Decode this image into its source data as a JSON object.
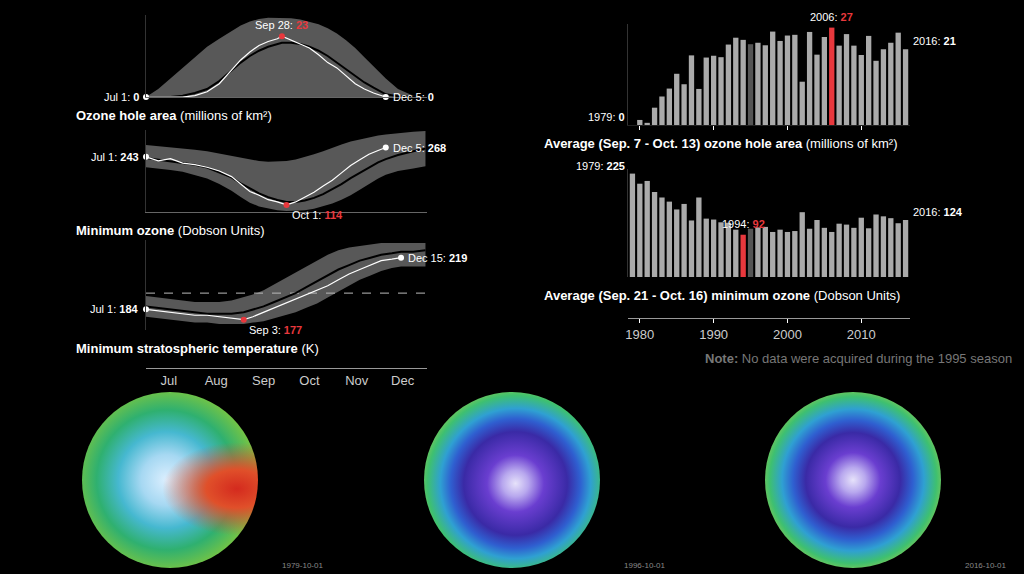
{
  "chart_data": [
    {
      "type": "line",
      "title": "Ozone hole area (millions of km²)",
      "x": [
        0,
        8,
        16,
        24,
        32,
        40,
        48,
        56,
        62,
        68,
        74,
        80,
        86,
        89,
        95,
        101,
        107,
        113,
        119,
        125,
        131,
        137,
        143,
        149,
        157,
        165,
        175,
        183
      ],
      "xlim": [
        0,
        184
      ],
      "ylim": [
        0,
        31
      ],
      "tick_labels": false,
      "series": [
        {
          "color": "#ffffff",
          "values": [
            0,
            0,
            0,
            0,
            0.5,
            2,
            5,
            10,
            14,
            17,
            19.5,
            21,
            22,
            23,
            21.5,
            20,
            18.5,
            16,
            13,
            11,
            8,
            5,
            3,
            1.5,
            0,
            null,
            null,
            null
          ]
        },
        {
          "color": "#000000",
          "values": [
            0,
            0,
            0,
            0.5,
            1.5,
            3,
            6,
            10,
            13,
            15.5,
            17.5,
            19,
            20,
            20.5,
            20.5,
            20,
            19,
            17.5,
            15.5,
            13,
            10.5,
            8,
            5.5,
            3.5,
            1,
            0.3,
            0,
            0
          ]
        }
      ],
      "band_low": [
        0,
        0,
        0,
        0,
        0,
        0,
        0,
        0,
        0,
        0,
        0,
        0,
        0,
        0,
        0,
        0,
        0,
        0,
        0,
        0,
        0,
        0,
        0,
        0,
        0,
        0,
        0,
        0
      ],
      "band_high": [
        0,
        3,
        7,
        11,
        15,
        19,
        22,
        25,
        27,
        28.5,
        29.5,
        30,
        30,
        30,
        29.8,
        29.3,
        28.5,
        27.5,
        26,
        24,
        21.5,
        18.5,
        15,
        11.5,
        7,
        3,
        0.5,
        0
      ],
      "annotations": [
        {
          "x": 0,
          "y": 0,
          "text": "Jul 1:",
          "color": "#ffffff"
        },
        {
          "x": 89,
          "y": 23,
          "text": "Sep 28:",
          "color": "#e8383d"
        },
        {
          "x": 157,
          "y": 0,
          "text": "Dec 5:",
          "color": "#ffffff"
        }
      ]
    },
    {
      "type": "line",
      "title": "Minimum ozone (Dobson Units)",
      "x": [
        0,
        8,
        16,
        24,
        32,
        40,
        48,
        56,
        62,
        68,
        74,
        80,
        86,
        92,
        98,
        104,
        110,
        116,
        122,
        128,
        134,
        140,
        146,
        152,
        157,
        165,
        175,
        183
      ],
      "xlim": [
        0,
        184
      ],
      "ylim": [
        95,
        315
      ],
      "tick_labels": false,
      "series": [
        {
          "color": "#ffffff",
          "values": [
            243,
            232,
            238,
            226,
            222,
            215,
            205,
            190,
            170,
            150,
            140,
            128,
            122,
            114,
            122,
            135,
            148,
            165,
            180,
            200,
            220,
            235,
            250,
            260,
            268,
            null,
            null,
            null
          ]
        },
        {
          "color": "#000000",
          "values": [
            240,
            236,
            232,
            228,
            222,
            214,
            202,
            188,
            172,
            158,
            145,
            135,
            127,
            122,
            122,
            126,
            133,
            143,
            156,
            170,
            186,
            200,
            215,
            228,
            237,
            248,
            258,
            265
          ]
        }
      ],
      "band_low": [
        215,
        212,
        208,
        203,
        195,
        185,
        170,
        152,
        135,
        120,
        110,
        104,
        100,
        98,
        98,
        100,
        104,
        110,
        118,
        128,
        140,
        155,
        170,
        185,
        195,
        205,
        212,
        218
      ],
      "band_high": [
        275,
        272,
        270,
        267,
        262,
        258,
        252,
        245,
        240,
        236,
        232,
        230,
        230,
        232,
        236,
        242,
        250,
        258,
        268,
        276,
        284,
        290,
        295,
        300,
        303,
        307,
        310,
        312
      ],
      "annotations": [
        {
          "x": 0,
          "y": 243,
          "text": "Jul 1:",
          "color": "#ffffff"
        },
        {
          "x": 92,
          "y": 114,
          "text": "Oct 1:",
          "color": "#e8383d"
        },
        {
          "x": 157,
          "y": 268,
          "text": "Dec 5:",
          "color": "#ffffff"
        }
      ]
    },
    {
      "type": "line",
      "title": "Minimum stratospheric temperature (K)",
      "x": [
        0,
        8,
        16,
        24,
        32,
        40,
        48,
        56,
        64,
        70,
        77,
        84,
        91,
        98,
        105,
        112,
        119,
        126,
        133,
        140,
        147,
        154,
        161,
        167,
        175,
        183
      ],
      "xlim": [
        0,
        184
      ],
      "ylim": [
        170,
        231
      ],
      "tick_labels": "x",
      "xticks": [
        {
          "value": 15,
          "label": "Jul"
        },
        {
          "value": 46,
          "label": "Aug"
        },
        {
          "value": 77,
          "label": "Sep"
        },
        {
          "value": 107,
          "label": "Oct"
        },
        {
          "value": 138,
          "label": "Nov"
        },
        {
          "value": 168,
          "label": "Dec"
        }
      ],
      "reference_line": 195,
      "series": [
        {
          "color": "#ffffff",
          "values": [
            184,
            183,
            182,
            181,
            180,
            180,
            179,
            178,
            177,
            179,
            182,
            185,
            188,
            191,
            194,
            197,
            200,
            204,
            208,
            211,
            214,
            217,
            218,
            219,
            null,
            null
          ]
        },
        {
          "color": "#000000",
          "values": [
            186,
            185,
            184,
            183,
            182,
            181,
            181,
            181,
            182,
            184,
            186,
            189,
            192,
            195,
            199,
            203,
            207,
            211,
            214,
            217,
            219,
            221,
            222,
            223,
            223,
            224
          ]
        }
      ],
      "band_low": [
        179,
        178,
        177,
        176,
        175,
        175,
        174,
        174,
        174,
        175,
        176,
        178,
        180,
        182,
        185,
        188,
        192,
        196,
        200,
        204,
        207,
        210,
        212,
        213,
        213,
        213
      ],
      "band_high": [
        193,
        192,
        191,
        190,
        189,
        189,
        189,
        190,
        192,
        194,
        197,
        201,
        205,
        209,
        213,
        217,
        221,
        224,
        226,
        227,
        228,
        229,
        229,
        229,
        229,
        229
      ],
      "annotations": [
        {
          "x": 0,
          "y": 184,
          "text": "Jul 1:",
          "color": "#ffffff"
        },
        {
          "x": 64,
          "y": 177,
          "text": "Sep 3:",
          "color": "#e8383d"
        },
        {
          "x": 167,
          "y": 219,
          "text": "Dec 15:",
          "color": "#ffffff"
        }
      ]
    },
    {
      "type": "bar",
      "title": "Average (Sep. 7 - Oct. 13) ozone hole area (millions of km²)",
      "x": [
        1979,
        1980,
        1981,
        1982,
        1983,
        1984,
        1985,
        1986,
        1987,
        1988,
        1989,
        1990,
        1991,
        1992,
        1993,
        1994,
        1995,
        1996,
        1997,
        1998,
        1999,
        2000,
        2001,
        2002,
        2003,
        2004,
        2005,
        2006,
        2007,
        2008,
        2009,
        2010,
        2011,
        2012,
        2013,
        2014,
        2015,
        2016
      ],
      "values": [
        0,
        1.4,
        0.6,
        4.8,
        7.9,
        10.1,
        14.2,
        11.3,
        19.3,
        10.0,
        18.7,
        19.2,
        18.8,
        22.3,
        24.2,
        23.6,
        22.4,
        22.8,
        22.1,
        25.9,
        23.3,
        24.8,
        25.0,
        12.0,
        25.8,
        19.5,
        24.4,
        27,
        22.0,
        25.2,
        22.0,
        19.4,
        24.7,
        17.8,
        21.0,
        22.8,
        25.6,
        21
      ],
      "colors": [
        "#aaaaaa",
        "#aaaaaa",
        "#aaaaaa",
        "#aaaaaa",
        "#aaaaaa",
        "#aaaaaa",
        "#aaaaaa",
        "#aaaaaa",
        "#aaaaaa",
        "#aaaaaa",
        "#aaaaaa",
        "#aaaaaa",
        "#aaaaaa",
        "#aaaaaa",
        "#aaaaaa",
        "#aaaaaa",
        "#555555",
        "#aaaaaa",
        "#aaaaaa",
        "#aaaaaa",
        "#aaaaaa",
        "#aaaaaa",
        "#aaaaaa",
        "#aaaaaa",
        "#aaaaaa",
        "#aaaaaa",
        "#aaaaaa",
        "#e8383d",
        "#aaaaaa",
        "#aaaaaa",
        "#aaaaaa",
        "#aaaaaa",
        "#aaaaaa",
        "#aaaaaa",
        "#aaaaaa",
        "#aaaaaa",
        "#aaaaaa",
        "#aaaaaa"
      ],
      "xlim": [
        1978.4,
        2016.6
      ],
      "xticks": [
        1980,
        1990,
        2000,
        2010
      ],
      "ylim": [
        0,
        28
      ],
      "tick_labels": false,
      "annotations": [
        {
          "x": 1979,
          "y": 0,
          "text": "1979:",
          "color": "#ffffff"
        },
        {
          "x": 2006,
          "y": 27,
          "text": "2006:",
          "color": "#e8383d"
        },
        {
          "x": 2016,
          "y": 21,
          "text": "2016:",
          "color": "#ffffff"
        }
      ]
    },
    {
      "type": "bar",
      "title": "Average (Sep. 21 - Oct. 16) minimum ozone (Dobson Units)",
      "x": [
        1979,
        1980,
        1981,
        1982,
        1983,
        1984,
        1985,
        1986,
        1987,
        1988,
        1989,
        1990,
        1991,
        1992,
        1993,
        1994,
        1995,
        1996,
        1997,
        1998,
        1999,
        2000,
        2001,
        2002,
        2003,
        2004,
        2005,
        2006,
        2007,
        2008,
        2009,
        2010,
        2011,
        2012,
        2013,
        2014,
        2015,
        2016
      ],
      "values": [
        225,
        203,
        209,
        185,
        173,
        164,
        147,
        159,
        123,
        173,
        127,
        125,
        119,
        118,
        103,
        92,
        105,
        108,
        109,
        98,
        103,
        98,
        100,
        141,
        105,
        124,
        107,
        98,
        116,
        114,
        107,
        129,
        106,
        136,
        132,
        128,
        117,
        124
      ],
      "colors": [
        "#aaaaaa",
        "#aaaaaa",
        "#aaaaaa",
        "#aaaaaa",
        "#aaaaaa",
        "#aaaaaa",
        "#aaaaaa",
        "#aaaaaa",
        "#aaaaaa",
        "#aaaaaa",
        "#aaaaaa",
        "#aaaaaa",
        "#aaaaaa",
        "#aaaaaa",
        "#aaaaaa",
        "#e8383d",
        "#555555",
        "#aaaaaa",
        "#aaaaaa",
        "#aaaaaa",
        "#aaaaaa",
        "#aaaaaa",
        "#aaaaaa",
        "#aaaaaa",
        "#aaaaaa",
        "#aaaaaa",
        "#aaaaaa",
        "#aaaaaa",
        "#aaaaaa",
        "#aaaaaa",
        "#aaaaaa",
        "#aaaaaa",
        "#aaaaaa",
        "#aaaaaa",
        "#aaaaaa",
        "#aaaaaa",
        "#aaaaaa",
        "#aaaaaa"
      ],
      "xlim": [
        1978.4,
        2016.6
      ],
      "xticks": [
        1980,
        1990,
        2000,
        2010
      ],
      "ylim": [
        0,
        235
      ],
      "tick_labels": "x",
      "note": "Note: No data were acquired during the 1995 season",
      "annotations": [
        {
          "x": 1979,
          "y": 225,
          "text": "1979:",
          "color": "#ffffff"
        },
        {
          "x": 1994,
          "y": 92,
          "text": "1994:",
          "color": "#e8383d"
        },
        {
          "x": 2016,
          "y": 124,
          "text": "2016:",
          "color": "#ffffff"
        }
      ]
    }
  ],
  "maps": [
    {
      "date": "1979-10-01"
    },
    {
      "date": "1996-10-01"
    },
    {
      "date": "2016-10-01"
    }
  ]
}
